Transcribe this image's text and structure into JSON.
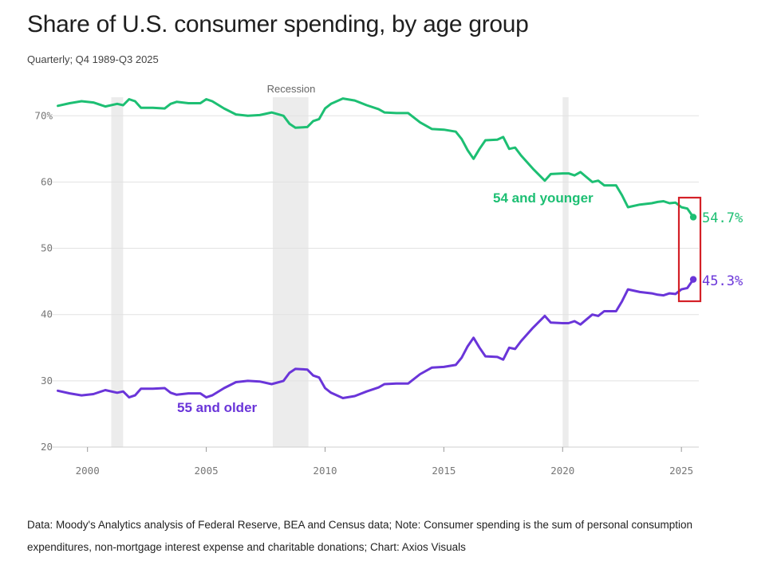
{
  "title": "Share of U.S. consumer spending, by age group",
  "subtitle": "Quarterly; Q4 1989-Q3 2025",
  "footnote": "Data: Moody's Analytics analysis of Federal Reserve, BEA and Census data; Note: Consumer spending is the sum of personal consumption expenditures, non-mortgage interest expense and charitable donations; Chart: Axios Visuals",
  "colors": {
    "younger": "#1dbf73",
    "older": "#6a35d9",
    "recession": "#ececec",
    "highlight": "#d42027",
    "grid": "#e2e2e2"
  },
  "chart_data": {
    "type": "line",
    "xlim": [
      1998.6,
      2025.8
    ],
    "ylim": [
      20,
      74
    ],
    "y_ticks": [
      "70%",
      "60",
      "50",
      "40",
      "30",
      "20"
    ],
    "y_tick_values": [
      70,
      60,
      50,
      40,
      30,
      20
    ],
    "x_ticks": [
      "2000",
      "2005",
      "2010",
      "2015",
      "2020",
      "2025"
    ],
    "x_tick_values": [
      2000,
      2005,
      2010,
      2015,
      2020,
      2025
    ],
    "recession_label": "Recession",
    "recessions": [
      [
        2001.0,
        2001.5
      ],
      [
        2007.8,
        2009.3
      ],
      [
        2020.0,
        2020.25
      ]
    ],
    "series": [
      {
        "name": "54 and younger",
        "end_label": "54.7%",
        "points": [
          [
            1998.75,
            71.5
          ],
          [
            1999.25,
            71.9
          ],
          [
            1999.75,
            72.2
          ],
          [
            2000.25,
            72.0
          ],
          [
            2000.75,
            71.4
          ],
          [
            2001.25,
            71.8
          ],
          [
            2001.5,
            71.6
          ],
          [
            2001.75,
            72.5
          ],
          [
            2002.0,
            72.2
          ],
          [
            2002.25,
            71.2
          ],
          [
            2002.75,
            71.2
          ],
          [
            2003.25,
            71.1
          ],
          [
            2003.5,
            71.8
          ],
          [
            2003.75,
            72.1
          ],
          [
            2004.25,
            71.9
          ],
          [
            2004.75,
            71.9
          ],
          [
            2005.0,
            72.5
          ],
          [
            2005.25,
            72.2
          ],
          [
            2005.75,
            71.1
          ],
          [
            2006.25,
            70.2
          ],
          [
            2006.75,
            70.0
          ],
          [
            2007.25,
            70.1
          ],
          [
            2007.75,
            70.5
          ],
          [
            2008.25,
            70.0
          ],
          [
            2008.5,
            68.8
          ],
          [
            2008.75,
            68.2
          ],
          [
            2009.25,
            68.3
          ],
          [
            2009.5,
            69.2
          ],
          [
            2009.75,
            69.5
          ],
          [
            2010.0,
            71.1
          ],
          [
            2010.25,
            71.8
          ],
          [
            2010.75,
            72.6
          ],
          [
            2011.25,
            72.3
          ],
          [
            2011.75,
            71.6
          ],
          [
            2012.25,
            71.0
          ],
          [
            2012.5,
            70.5
          ],
          [
            2013.0,
            70.4
          ],
          [
            2013.5,
            70.4
          ],
          [
            2014.0,
            69.0
          ],
          [
            2014.5,
            68.0
          ],
          [
            2015.0,
            67.9
          ],
          [
            2015.5,
            67.6
          ],
          [
            2015.75,
            66.5
          ],
          [
            2016.0,
            64.8
          ],
          [
            2016.25,
            63.5
          ],
          [
            2016.5,
            65.0
          ],
          [
            2016.75,
            66.3
          ],
          [
            2017.25,
            66.4
          ],
          [
            2017.5,
            66.8
          ],
          [
            2017.75,
            65.0
          ],
          [
            2018.0,
            65.2
          ],
          [
            2018.25,
            64.0
          ],
          [
            2018.75,
            62.0
          ],
          [
            2019.25,
            60.2
          ],
          [
            2019.5,
            61.2
          ],
          [
            2020.0,
            61.3
          ],
          [
            2020.25,
            61.3
          ],
          [
            2020.5,
            61.0
          ],
          [
            2020.75,
            61.5
          ],
          [
            2021.25,
            60.0
          ],
          [
            2021.5,
            60.2
          ],
          [
            2021.75,
            59.5
          ],
          [
            2022.25,
            59.5
          ],
          [
            2022.5,
            58.0
          ],
          [
            2022.75,
            56.2
          ],
          [
            2023.25,
            56.6
          ],
          [
            2023.75,
            56.8
          ],
          [
            2024.0,
            57.0
          ],
          [
            2024.25,
            57.1
          ],
          [
            2024.5,
            56.8
          ],
          [
            2024.75,
            56.9
          ],
          [
            2025.0,
            56.2
          ],
          [
            2025.25,
            56.0
          ],
          [
            2025.5,
            54.7
          ]
        ]
      },
      {
        "name": "55 and older",
        "end_label": "45.3%",
        "points": [
          [
            1998.75,
            28.5
          ],
          [
            1999.25,
            28.1
          ],
          [
            1999.75,
            27.8
          ],
          [
            2000.25,
            28.0
          ],
          [
            2000.75,
            28.6
          ],
          [
            2001.25,
            28.2
          ],
          [
            2001.5,
            28.4
          ],
          [
            2001.75,
            27.5
          ],
          [
            2002.0,
            27.8
          ],
          [
            2002.25,
            28.8
          ],
          [
            2002.75,
            28.8
          ],
          [
            2003.25,
            28.9
          ],
          [
            2003.5,
            28.2
          ],
          [
            2003.75,
            27.9
          ],
          [
            2004.25,
            28.1
          ],
          [
            2004.75,
            28.1
          ],
          [
            2005.0,
            27.5
          ],
          [
            2005.25,
            27.8
          ],
          [
            2005.75,
            28.9
          ],
          [
            2006.25,
            29.8
          ],
          [
            2006.75,
            30.0
          ],
          [
            2007.25,
            29.9
          ],
          [
            2007.75,
            29.5
          ],
          [
            2008.25,
            30.0
          ],
          [
            2008.5,
            31.2
          ],
          [
            2008.75,
            31.8
          ],
          [
            2009.25,
            31.7
          ],
          [
            2009.5,
            30.8
          ],
          [
            2009.75,
            30.5
          ],
          [
            2010.0,
            28.9
          ],
          [
            2010.25,
            28.2
          ],
          [
            2010.75,
            27.4
          ],
          [
            2011.25,
            27.7
          ],
          [
            2011.75,
            28.4
          ],
          [
            2012.25,
            29.0
          ],
          [
            2012.5,
            29.5
          ],
          [
            2013.0,
            29.6
          ],
          [
            2013.5,
            29.6
          ],
          [
            2014.0,
            31.0
          ],
          [
            2014.5,
            32.0
          ],
          [
            2015.0,
            32.1
          ],
          [
            2015.5,
            32.4
          ],
          [
            2015.75,
            33.5
          ],
          [
            2016.0,
            35.2
          ],
          [
            2016.25,
            36.5
          ],
          [
            2016.5,
            35.0
          ],
          [
            2016.75,
            33.7
          ],
          [
            2017.25,
            33.6
          ],
          [
            2017.5,
            33.2
          ],
          [
            2017.75,
            35.0
          ],
          [
            2018.0,
            34.8
          ],
          [
            2018.25,
            36.0
          ],
          [
            2018.75,
            38.0
          ],
          [
            2019.25,
            39.8
          ],
          [
            2019.5,
            38.8
          ],
          [
            2020.0,
            38.7
          ],
          [
            2020.25,
            38.7
          ],
          [
            2020.5,
            39.0
          ],
          [
            2020.75,
            38.5
          ],
          [
            2021.25,
            40.0
          ],
          [
            2021.5,
            39.8
          ],
          [
            2021.75,
            40.5
          ],
          [
            2022.25,
            40.5
          ],
          [
            2022.5,
            42.0
          ],
          [
            2022.75,
            43.8
          ],
          [
            2023.25,
            43.4
          ],
          [
            2023.75,
            43.2
          ],
          [
            2024.0,
            43.0
          ],
          [
            2024.25,
            42.9
          ],
          [
            2024.5,
            43.2
          ],
          [
            2024.75,
            43.1
          ],
          [
            2025.0,
            43.8
          ],
          [
            2025.25,
            44.0
          ],
          [
            2025.5,
            45.3
          ]
        ]
      }
    ]
  }
}
